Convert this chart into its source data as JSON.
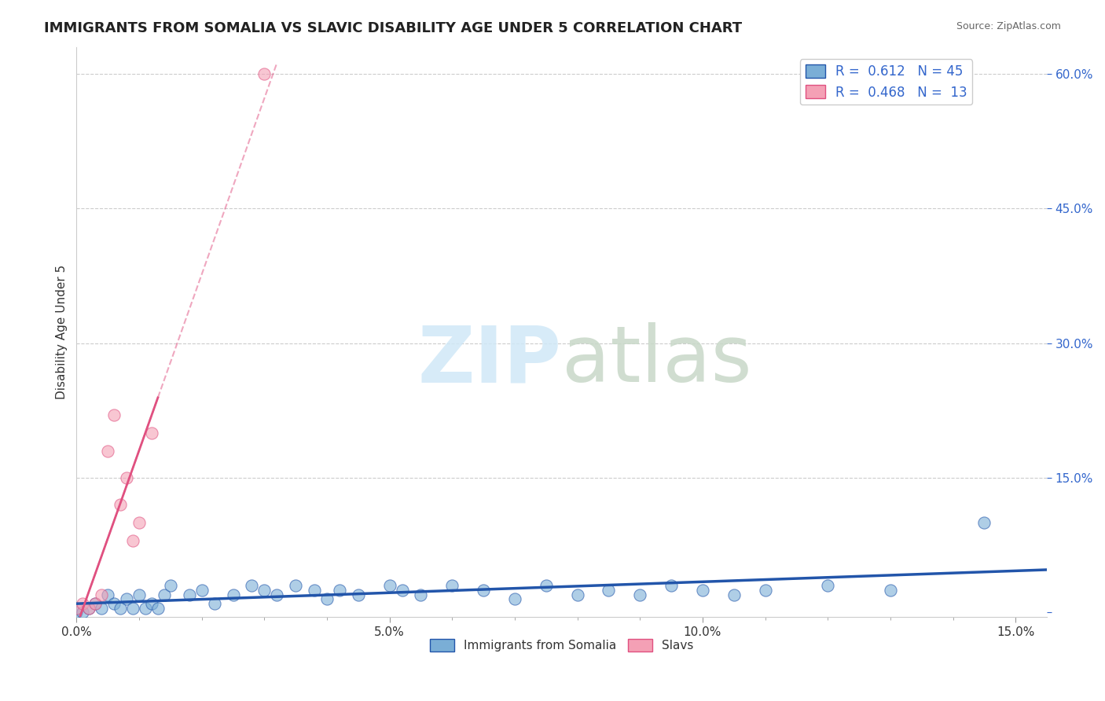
{
  "title": "IMMIGRANTS FROM SOMALIA VS SLAVIC DISABILITY AGE UNDER 5 CORRELATION CHART",
  "source": "Source: ZipAtlas.com",
  "xlabel_bottom": "",
  "ylabel": "Disability Age Under 5",
  "x_ticks": [
    0.0,
    0.05,
    0.1,
    0.15
  ],
  "x_tick_labels": [
    "0.0%",
    "5.0%",
    "10.0%",
    "15.0%"
  ],
  "y_ticks_right": [
    0.0,
    0.15,
    0.3,
    0.45,
    0.6
  ],
  "y_tick_labels_right": [
    "",
    "15.0%",
    "30.0%",
    "45.0%",
    "60.0%"
  ],
  "xlim": [
    0.0,
    0.155
  ],
  "ylim": [
    -0.005,
    0.63
  ],
  "blue_color": "#7aaed6",
  "pink_color": "#f4a0b5",
  "blue_line_color": "#2255aa",
  "pink_line_color": "#e05080",
  "legend_blue_label": "R =  0.612   N = 45",
  "legend_pink_label": "R =  0.468   N =  13",
  "watermark": "ZIPatlas",
  "legend_text_color": "#3366cc",
  "blue_R": 0.612,
  "blue_N": 45,
  "pink_R": 0.468,
  "pink_N": 13,
  "blue_points": [
    [
      0.0,
      0.0
    ],
    [
      0.001,
      0.0
    ],
    [
      0.002,
      0.005
    ],
    [
      0.003,
      0.01
    ],
    [
      0.004,
      0.005
    ],
    [
      0.005,
      0.02
    ],
    [
      0.006,
      0.01
    ],
    [
      0.007,
      0.005
    ],
    [
      0.008,
      0.015
    ],
    [
      0.009,
      0.005
    ],
    [
      0.01,
      0.02
    ],
    [
      0.011,
      0.005
    ],
    [
      0.012,
      0.01
    ],
    [
      0.013,
      0.005
    ],
    [
      0.014,
      0.02
    ],
    [
      0.015,
      0.03
    ],
    [
      0.018,
      0.02
    ],
    [
      0.02,
      0.025
    ],
    [
      0.022,
      0.01
    ],
    [
      0.025,
      0.02
    ],
    [
      0.028,
      0.03
    ],
    [
      0.03,
      0.025
    ],
    [
      0.032,
      0.02
    ],
    [
      0.035,
      0.03
    ],
    [
      0.038,
      0.025
    ],
    [
      0.04,
      0.015
    ],
    [
      0.042,
      0.025
    ],
    [
      0.045,
      0.02
    ],
    [
      0.05,
      0.03
    ],
    [
      0.052,
      0.025
    ],
    [
      0.055,
      0.02
    ],
    [
      0.06,
      0.03
    ],
    [
      0.065,
      0.025
    ],
    [
      0.07,
      0.015
    ],
    [
      0.075,
      0.03
    ],
    [
      0.08,
      0.02
    ],
    [
      0.085,
      0.025
    ],
    [
      0.09,
      0.02
    ],
    [
      0.095,
      0.03
    ],
    [
      0.1,
      0.025
    ],
    [
      0.105,
      0.02
    ],
    [
      0.11,
      0.025
    ],
    [
      0.12,
      0.03
    ],
    [
      0.13,
      0.025
    ],
    [
      0.145,
      0.1
    ]
  ],
  "pink_points": [
    [
      0.0,
      0.005
    ],
    [
      0.001,
      0.01
    ],
    [
      0.002,
      0.005
    ],
    [
      0.003,
      0.01
    ],
    [
      0.004,
      0.02
    ],
    [
      0.005,
      0.18
    ],
    [
      0.006,
      0.22
    ],
    [
      0.007,
      0.12
    ],
    [
      0.008,
      0.15
    ],
    [
      0.009,
      0.08
    ],
    [
      0.01,
      0.1
    ],
    [
      0.012,
      0.2
    ],
    [
      0.03,
      0.6
    ]
  ],
  "blue_slope": 0.65,
  "blue_intercept": 0.005,
  "pink_slope": 45.0,
  "pink_intercept": 0.005
}
